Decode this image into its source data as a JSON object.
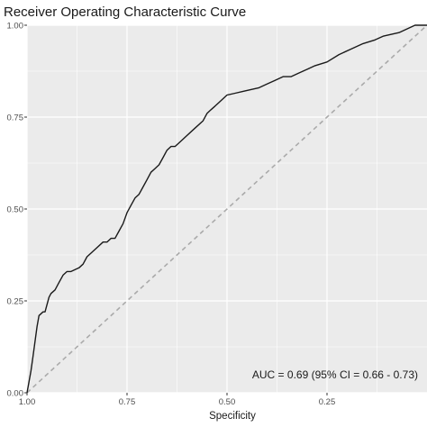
{
  "chart_data": {
    "type": "line",
    "title": "Receiver Operating Characteristic Curve",
    "xlabel": "Specificity",
    "ylabel": "",
    "x_reversed": true,
    "xlim": [
      1.0,
      0.0
    ],
    "ylim": [
      0.0,
      1.0
    ],
    "x_ticks": [
      1.0,
      0.75,
      0.5,
      0.25
    ],
    "x_tick_labels": [
      "1.00",
      "0.75",
      "0.50",
      "0.25"
    ],
    "y_ticks": [
      0.0,
      0.25,
      0.5,
      0.75,
      1.0
    ],
    "y_tick_labels": [
      "0.00",
      "0.25",
      "0.50",
      "0.75",
      "1.00"
    ],
    "grid": true,
    "background": "#ebebeb",
    "grid_color": "#ffffff",
    "line_color": "#1a1a1a",
    "reference_color": "#aaaaaa",
    "annotation": "AUC = 0.69 (95% CI = 0.66 - 0.73)",
    "series": [
      {
        "x": [
          1.0,
          0.995,
          0.99,
          0.985,
          0.98,
          0.975,
          0.97,
          0.96,
          0.955,
          0.95,
          0.945,
          0.94,
          0.93,
          0.92,
          0.91,
          0.9,
          0.89,
          0.87,
          0.86,
          0.85,
          0.84,
          0.83,
          0.81,
          0.8,
          0.79,
          0.78,
          0.77,
          0.76,
          0.75,
          0.74,
          0.73,
          0.72,
          0.71,
          0.7,
          0.69,
          0.68,
          0.67,
          0.66,
          0.65,
          0.64,
          0.63,
          0.62,
          0.6,
          0.58,
          0.56,
          0.55,
          0.54,
          0.53,
          0.52,
          0.5,
          0.48,
          0.46,
          0.44,
          0.42,
          0.4,
          0.38,
          0.36,
          0.34,
          0.32,
          0.3,
          0.28,
          0.25,
          0.22,
          0.19,
          0.16,
          0.13,
          0.11,
          0.09,
          0.07,
          0.05,
          0.03,
          0.0
        ],
        "y": [
          0.0,
          0.03,
          0.06,
          0.1,
          0.14,
          0.18,
          0.21,
          0.22,
          0.22,
          0.24,
          0.26,
          0.27,
          0.28,
          0.3,
          0.32,
          0.33,
          0.33,
          0.34,
          0.35,
          0.37,
          0.38,
          0.39,
          0.41,
          0.41,
          0.42,
          0.42,
          0.44,
          0.46,
          0.49,
          0.51,
          0.53,
          0.54,
          0.56,
          0.58,
          0.6,
          0.61,
          0.62,
          0.64,
          0.66,
          0.67,
          0.67,
          0.68,
          0.7,
          0.72,
          0.74,
          0.76,
          0.77,
          0.78,
          0.79,
          0.81,
          0.815,
          0.82,
          0.825,
          0.83,
          0.84,
          0.85,
          0.86,
          0.86,
          0.87,
          0.88,
          0.89,
          0.9,
          0.92,
          0.935,
          0.95,
          0.96,
          0.97,
          0.975,
          0.98,
          0.99,
          1.0,
          1.0
        ]
      },
      {
        "x": [
          1.0,
          0.0
        ],
        "y": [
          0.0,
          1.0
        ],
        "style": "dashed"
      }
    ]
  }
}
